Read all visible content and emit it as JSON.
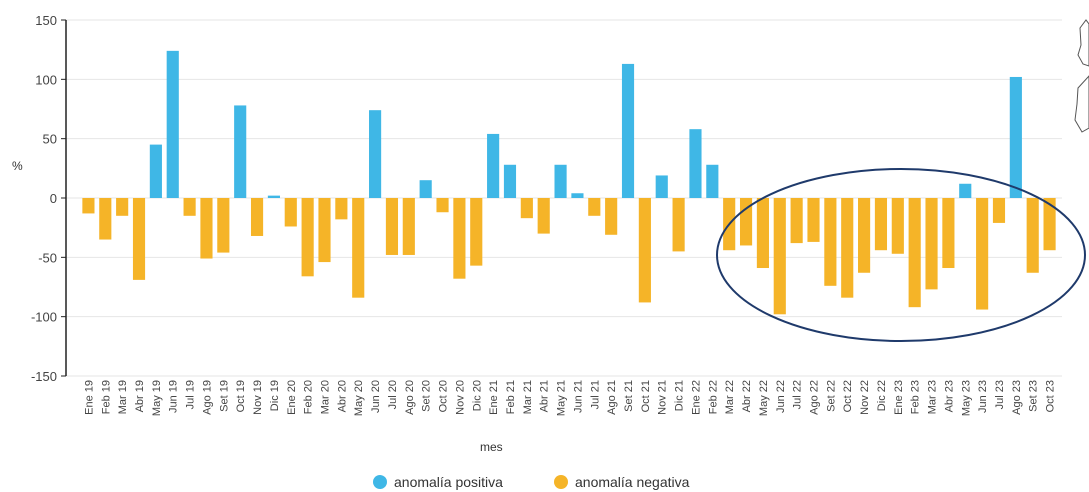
{
  "chart_data": {
    "type": "bar",
    "ylabel": "%",
    "xlabel": "mes",
    "ylim": [
      -150,
      150
    ],
    "yticks": [
      150,
      100,
      50,
      0,
      -50,
      -100,
      -150
    ],
    "grid": true,
    "legend_position": "bottom",
    "categories": [
      "Ene 19",
      "Feb 19",
      "Mar 19",
      "Abr 19",
      "May 19",
      "Jun 19",
      "Jul 19",
      "Ago 19",
      "Set 19",
      "Oct 19",
      "Nov 19",
      "Dic 19",
      "Ene 20",
      "Feb 20",
      "Mar 20",
      "Abr 20",
      "May 20",
      "Jun 20",
      "Jul 20",
      "Ago 20",
      "Set 20",
      "Oct 20",
      "Nov 20",
      "Dic 20",
      "Ene 21",
      "Feb 21",
      "Mar 21",
      "Abr 21",
      "May 21",
      "Jun 21",
      "Jul 21",
      "Ago 21",
      "Set 21",
      "Oct 21",
      "Nov 21",
      "Dic 21",
      "Ene 22",
      "Feb 22",
      "Mar 22",
      "Abr 22",
      "May 22",
      "Jun 22",
      "Jul 22",
      "Ago 22",
      "Set 22",
      "Oct 22",
      "Nov 22",
      "Dic 22",
      "Ene 23",
      "Feb 23",
      "Mar 23",
      "Abr 23",
      "May 23",
      "Jun 23",
      "Jul 23",
      "Ago 23",
      "Set 23",
      "Oct 23"
    ],
    "values": [
      -13,
      -35,
      -15,
      -69,
      45,
      124,
      -15,
      -51,
      -46,
      78,
      -32,
      2,
      -24,
      -66,
      -54,
      -18,
      -84,
      74,
      -48,
      -48,
      15,
      -12,
      -68,
      -57,
      54,
      28,
      -17,
      -30,
      28,
      4,
      -15,
      -31,
      113,
      -88,
      19,
      -45,
      58,
      28,
      -44,
      -40,
      -59,
      -98,
      -38,
      -37,
      -74,
      -84,
      -63,
      -44,
      -47,
      -92,
      -77,
      -59,
      12,
      -94,
      -21,
      102,
      -63,
      -44
    ],
    "legend": [
      {
        "label": "anomalía positiva",
        "color": "#3fb7e6"
      },
      {
        "label": "anomalía negativa",
        "color": "#f5b428"
      }
    ],
    "colors": {
      "positive": "#3fb7e6",
      "negative": "#f5b428",
      "ellipse": "#1f3a6b",
      "grid": "#e6e6e6",
      "axis": "#222222"
    }
  }
}
